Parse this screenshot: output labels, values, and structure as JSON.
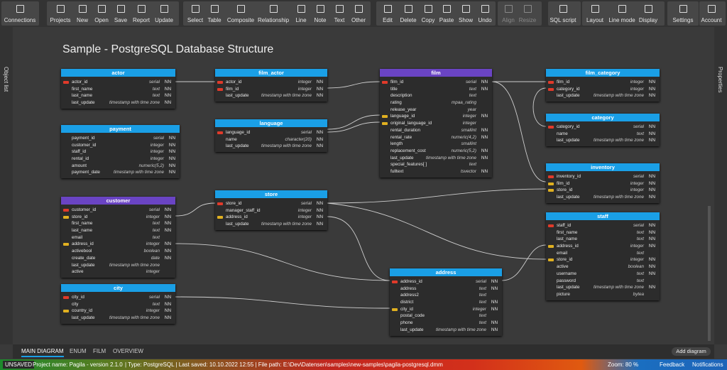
{
  "toolbar": {
    "buttons": [
      "Connections",
      "Projects",
      "New",
      "Open",
      "Save",
      "Report",
      "Update",
      "Select",
      "Table",
      "Composite",
      "Relationship",
      "Line",
      "Note",
      "Text",
      "Other",
      "Edit",
      "Delete",
      "Copy",
      "Paste",
      "Show",
      "Undo",
      "Align",
      "Resize",
      "SQL script",
      "Layout",
      "Line mode",
      "Display",
      "Settings",
      "Account"
    ]
  },
  "sidebars": {
    "left": "Object list",
    "right": "Properties"
  },
  "diagram": {
    "title": "Sample - PostgreSQL Database Structure",
    "tables": [
      {
        "name": "actor",
        "color": "#1a9fe6",
        "columns": [
          {
            "name": "actor_id",
            "type": "serial",
            "constraint": "NN",
            "key": "pk"
          },
          {
            "name": "first_name",
            "type": "text",
            "constraint": "NN"
          },
          {
            "name": "last_name",
            "type": "text",
            "constraint": "NN"
          },
          {
            "name": "last_update",
            "type": "timestamp with time zone",
            "constraint": "NN"
          }
        ]
      },
      {
        "name": "payment",
        "color": "#1a9fe6",
        "columns": [
          {
            "name": "payment_id",
            "type": "serial",
            "constraint": "NN"
          },
          {
            "name": "customer_id",
            "type": "integer",
            "constraint": "NN"
          },
          {
            "name": "staff_id",
            "type": "integer",
            "constraint": "NN"
          },
          {
            "name": "rental_id",
            "type": "integer",
            "constraint": "NN"
          },
          {
            "name": "amount",
            "type": "numeric(5,2)",
            "constraint": "NN"
          },
          {
            "name": "payment_date",
            "type": "timestamp with time zone",
            "constraint": "NN"
          }
        ]
      },
      {
        "name": "customer",
        "color": "#6a44c4",
        "columns": [
          {
            "name": "customer_id",
            "type": "serial",
            "constraint": "NN",
            "key": "pk"
          },
          {
            "name": "store_id",
            "type": "integer",
            "constraint": "NN",
            "key": "fk"
          },
          {
            "name": "first_name",
            "type": "text",
            "constraint": "NN"
          },
          {
            "name": "last_name",
            "type": "text",
            "constraint": "NN"
          },
          {
            "name": "email",
            "type": "text"
          },
          {
            "name": "address_id",
            "type": "integer",
            "constraint": "NN",
            "key": "fk"
          },
          {
            "name": "activebool",
            "type": "boolean",
            "constraint": "NN"
          },
          {
            "name": "create_date",
            "type": "date",
            "constraint": "NN"
          },
          {
            "name": "last_update",
            "type": "timestamp with time zone"
          },
          {
            "name": "active",
            "type": "integer"
          }
        ]
      },
      {
        "name": "city",
        "color": "#1a9fe6",
        "columns": [
          {
            "name": "city_id",
            "type": "serial",
            "constraint": "NN",
            "key": "pk"
          },
          {
            "name": "city",
            "type": "text",
            "constraint": "NN"
          },
          {
            "name": "country_id",
            "type": "integer",
            "constraint": "NN",
            "key": "fk"
          },
          {
            "name": "last_update",
            "type": "timestamp with time zone",
            "constraint": "NN"
          }
        ]
      },
      {
        "name": "film_actor",
        "color": "#1a9fe6",
        "columns": [
          {
            "name": "actor_id",
            "type": "integer",
            "constraint": "NN",
            "key": "pk"
          },
          {
            "name": "film_id",
            "type": "integer",
            "constraint": "NN",
            "key": "pk"
          },
          {
            "name": "last_update",
            "type": "timestamp with time zone",
            "constraint": "NN"
          }
        ]
      },
      {
        "name": "language",
        "color": "#1a9fe6",
        "columns": [
          {
            "name": "language_id",
            "type": "serial",
            "constraint": "NN",
            "key": "pk"
          },
          {
            "name": "name",
            "type": "character(20)",
            "constraint": "NN"
          },
          {
            "name": "last_update",
            "type": "timestamp with time zone",
            "constraint": "NN"
          }
        ]
      },
      {
        "name": "store",
        "color": "#1a9fe6",
        "columns": [
          {
            "name": "store_id",
            "type": "serial",
            "constraint": "NN",
            "key": "pk"
          },
          {
            "name": "manager_staff_id",
            "type": "integer",
            "constraint": "NN"
          },
          {
            "name": "address_id",
            "type": "integer",
            "constraint": "NN",
            "key": "fk"
          },
          {
            "name": "last_update",
            "type": "timestamp with time zone",
            "constraint": "NN"
          }
        ]
      },
      {
        "name": "film",
        "color": "#6a44c4",
        "columns": [
          {
            "name": "film_id",
            "type": "serial",
            "constraint": "NN",
            "key": "pk"
          },
          {
            "name": "title",
            "type": "text",
            "constraint": "NN"
          },
          {
            "name": "description",
            "type": "text"
          },
          {
            "name": "rating",
            "type": "mpaa_rating"
          },
          {
            "name": "release_year",
            "type": "year"
          },
          {
            "name": "language_id",
            "type": "integer",
            "constraint": "NN",
            "key": "fk"
          },
          {
            "name": "original_language_id",
            "type": "integer",
            "key": "fk"
          },
          {
            "name": "rental_duration",
            "type": "smallint",
            "constraint": "NN"
          },
          {
            "name": "rental_rate",
            "type": "numeric(4,2)",
            "constraint": "NN"
          },
          {
            "name": "length",
            "type": "smallint"
          },
          {
            "name": "replacement_cost",
            "type": "numeric(5,2)",
            "constraint": "NN"
          },
          {
            "name": "last_update",
            "type": "timestamp with time zone",
            "constraint": "NN"
          },
          {
            "name": "special_features[ ]",
            "type": "text"
          },
          {
            "name": "fulltext",
            "type": "tsvector",
            "constraint": "NN"
          }
        ]
      },
      {
        "name": "film_category",
        "color": "#1a9fe6",
        "columns": [
          {
            "name": "film_id",
            "type": "integer",
            "constraint": "NN",
            "key": "pk"
          },
          {
            "name": "category_id",
            "type": "integer",
            "constraint": "NN",
            "key": "pk"
          },
          {
            "name": "last_update",
            "type": "timestamp with time zone",
            "constraint": "NN"
          }
        ]
      },
      {
        "name": "category",
        "color": "#1a9fe6",
        "columns": [
          {
            "name": "category_id",
            "type": "serial",
            "constraint": "NN",
            "key": "pk"
          },
          {
            "name": "name",
            "type": "text",
            "constraint": "NN"
          },
          {
            "name": "last_update",
            "type": "timestamp with time zone",
            "constraint": "NN"
          }
        ]
      },
      {
        "name": "inventory",
        "color": "#1a9fe6",
        "columns": [
          {
            "name": "inventory_id",
            "type": "serial",
            "constraint": "NN",
            "key": "pk"
          },
          {
            "name": "film_id",
            "type": "integer",
            "constraint": "NN",
            "key": "fk"
          },
          {
            "name": "store_id",
            "type": "integer",
            "constraint": "NN",
            "key": "fk"
          },
          {
            "name": "last_update",
            "type": "timestamp with time zone",
            "constraint": "NN"
          }
        ]
      },
      {
        "name": "staff",
        "color": "#1a9fe6",
        "columns": [
          {
            "name": "staff_id",
            "type": "serial",
            "constraint": "NN",
            "key": "pk"
          },
          {
            "name": "first_name",
            "type": "text",
            "constraint": "NN"
          },
          {
            "name": "last_name",
            "type": "text",
            "constraint": "NN"
          },
          {
            "name": "address_id",
            "type": "integer",
            "constraint": "NN",
            "key": "fk"
          },
          {
            "name": "email",
            "type": "text"
          },
          {
            "name": "store_id",
            "type": "integer",
            "constraint": "NN",
            "key": "fk"
          },
          {
            "name": "active",
            "type": "boolean",
            "constraint": "NN"
          },
          {
            "name": "username",
            "type": "text",
            "constraint": "NN"
          },
          {
            "name": "password",
            "type": "text"
          },
          {
            "name": "last_update",
            "type": "timestamp with time zone",
            "constraint": "NN"
          },
          {
            "name": "picture",
            "type": "bytea"
          }
        ]
      },
      {
        "name": "address",
        "color": "#1a9fe6",
        "columns": [
          {
            "name": "address_id",
            "type": "serial",
            "constraint": "NN",
            "key": "pk"
          },
          {
            "name": "address",
            "type": "text",
            "constraint": "NN"
          },
          {
            "name": "address2",
            "type": "text"
          },
          {
            "name": "district",
            "type": "text",
            "constraint": "NN"
          },
          {
            "name": "city_id",
            "type": "integer",
            "constraint": "NN",
            "key": "fk"
          },
          {
            "name": "postal_code",
            "type": "text"
          },
          {
            "name": "phone",
            "type": "text",
            "constraint": "NN"
          },
          {
            "name": "last_update",
            "type": "timestamp with time zone",
            "constraint": "NN"
          }
        ]
      }
    ]
  },
  "tabs": {
    "items": [
      "MAIN DIAGRAM",
      "ENUM",
      "FILM",
      "OVERVIEW"
    ],
    "add": "Add diagram"
  },
  "status": {
    "state": "UNSAVED",
    "project": "Project name: Pagila - version 2.1.0",
    "info": "| Type: PostgreSQL | Last saved: 10.10.2022 12:55 | File path: E:\\Dev\\Datensen\\samples\\new-samples\\pagila-postgresql.dmm",
    "zoom": "Zoom: 80 %",
    "feedback": "Feedback",
    "notifications": "Notifications"
  }
}
